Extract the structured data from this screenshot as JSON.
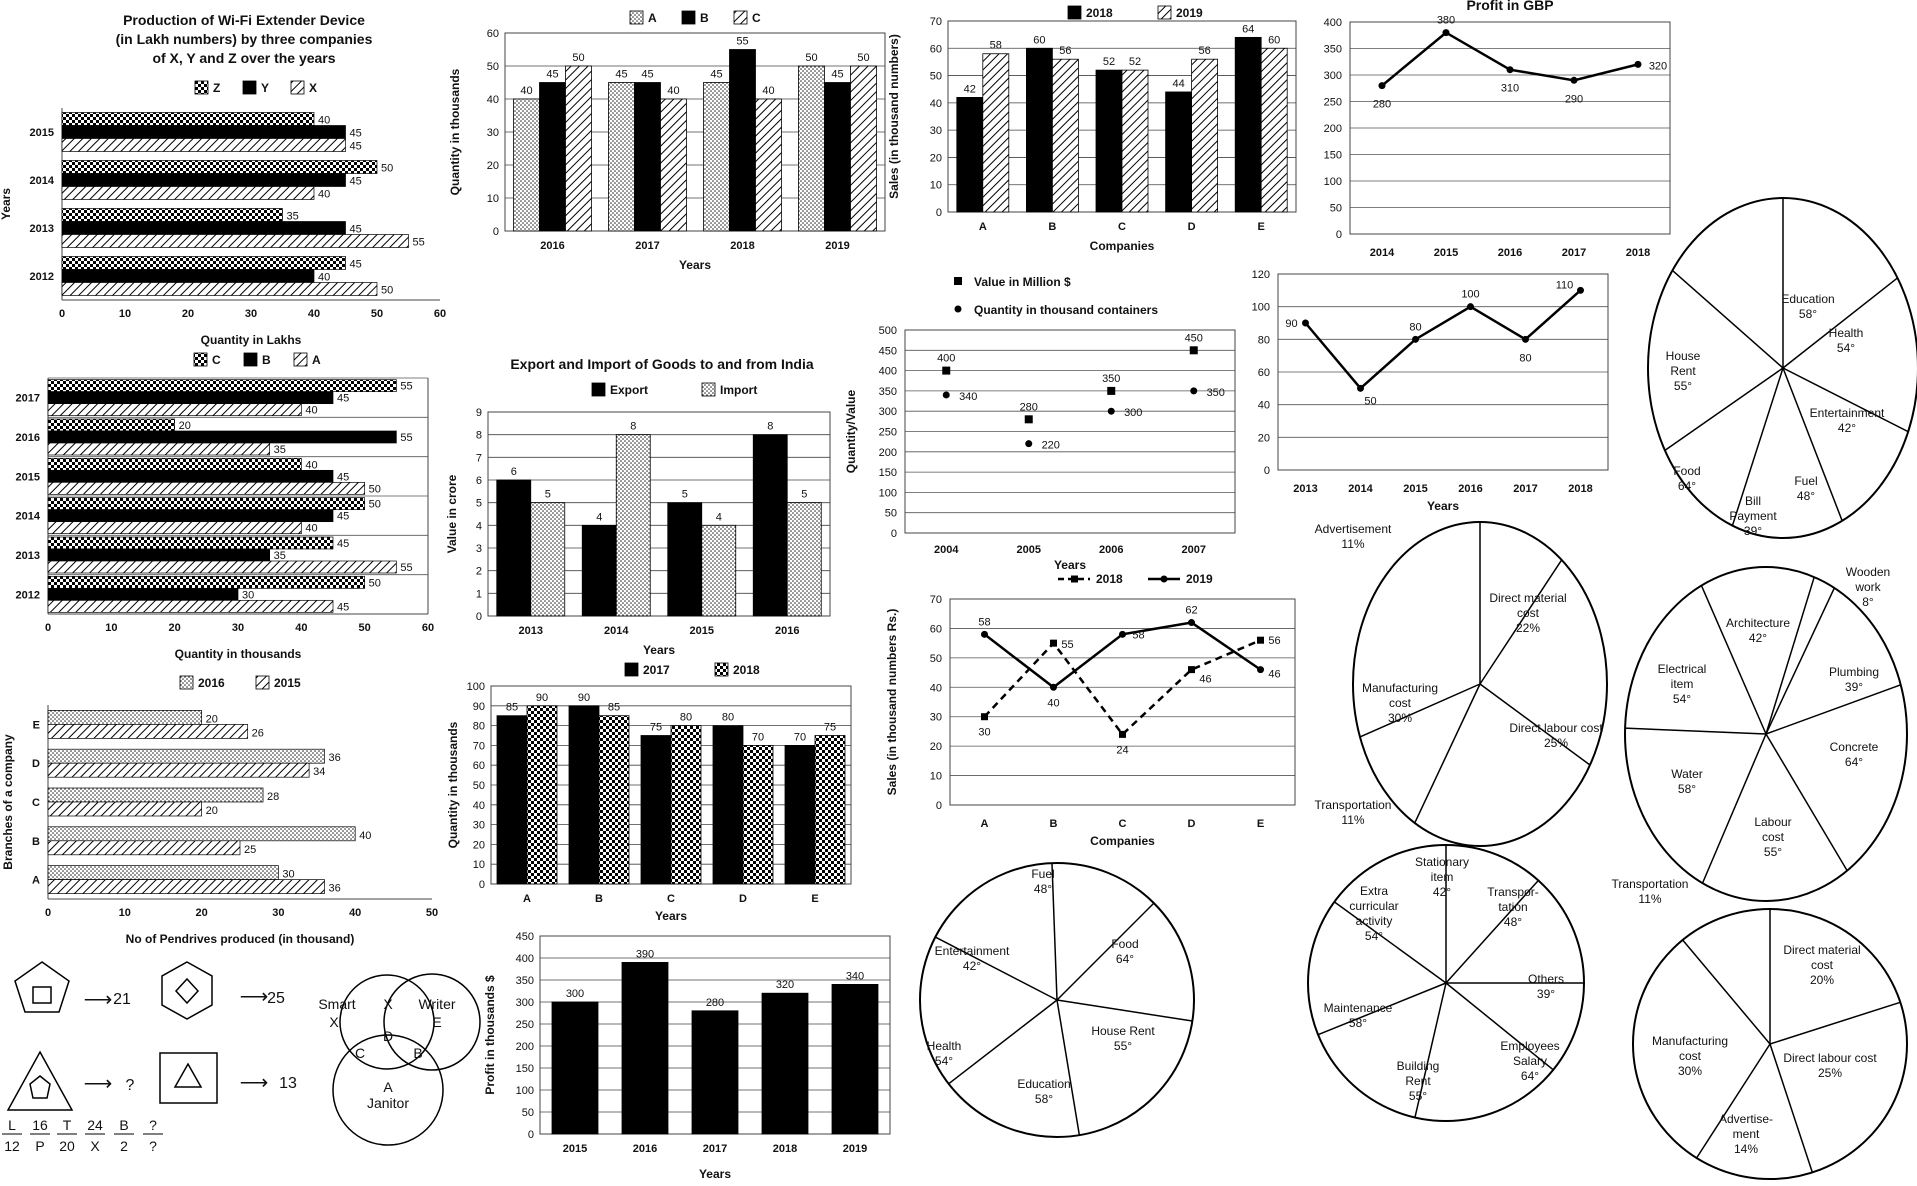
{
  "chart_data": [
    {
      "id": "c1",
      "type": "bar",
      "orientation": "horizontal",
      "title_lines": [
        "Production of Wi-Fi Extender Device",
        "(in Lakh numbers) by three companies",
        "of X, Y and Z over the years"
      ],
      "categories": [
        "2015",
        "2014",
        "2013",
        "2012"
      ],
      "xlabel": "Quantity in Lakhs",
      "ylabel": "Years",
      "xlim": [
        0,
        60
      ],
      "xticks": [
        "0",
        "10",
        "20",
        "30",
        "40",
        "50",
        "60"
      ],
      "series": [
        {
          "name": "Z",
          "pattern": "check",
          "values": [
            40,
            50,
            35,
            45
          ]
        },
        {
          "name": "Y",
          "pattern": "black",
          "values": [
            45,
            45,
            45,
            40
          ]
        },
        {
          "name": "X",
          "pattern": "hatch",
          "values": [
            45,
            40,
            55,
            50
          ]
        }
      ]
    },
    {
      "id": "c2",
      "type": "bar",
      "categories": [
        "2016",
        "2017",
        "2018",
        "2019"
      ],
      "xlabel": "Years",
      "ylabel": "Quantity in thousands",
      "ylim": [
        0,
        60
      ],
      "yticks": [
        "0",
        "10",
        "20",
        "30",
        "40",
        "50",
        "60"
      ],
      "series": [
        {
          "name": "A",
          "pattern": "dots",
          "values": [
            40,
            45,
            45,
            50
          ]
        },
        {
          "name": "B",
          "pattern": "black",
          "values": [
            45,
            45,
            55,
            45
          ]
        },
        {
          "name": "C",
          "pattern": "hatch",
          "values": [
            50,
            40,
            40,
            50
          ]
        }
      ]
    },
    {
      "id": "c3",
      "type": "bar",
      "categories": [
        "A",
        "B",
        "C",
        "D",
        "E"
      ],
      "xlabel": "Companies",
      "ylabel": "Sales (in thousand numbers)",
      "ylim": [
        0,
        70
      ],
      "yticks": [
        "0",
        "10",
        "20",
        "30",
        "40",
        "50",
        "60",
        "70"
      ],
      "series": [
        {
          "name": "2018",
          "pattern": "black",
          "values": [
            42,
            60,
            52,
            44,
            64
          ]
        },
        {
          "name": "2019",
          "pattern": "hatch",
          "values": [
            58,
            56,
            52,
            56,
            60
          ]
        }
      ]
    },
    {
      "id": "c4",
      "type": "line",
      "title": "Profit in GBP",
      "x": [
        "2014",
        "2015",
        "2016",
        "2017",
        "2018"
      ],
      "values": [
        280,
        380,
        310,
        290,
        320
      ],
      "ylim": [
        0,
        400
      ],
      "yticks": [
        "0",
        "50",
        "100",
        "150",
        "200",
        "250",
        "300",
        "350",
        "400"
      ]
    },
    {
      "id": "c5",
      "type": "bar",
      "orientation": "horizontal",
      "categories": [
        "2017",
        "2016",
        "2015",
        "2014",
        "2013",
        "2012"
      ],
      "xlabel": "Quantity in thousands",
      "xlim": [
        0,
        60
      ],
      "xticks": [
        "0",
        "10",
        "20",
        "30",
        "40",
        "50",
        "60"
      ],
      "series": [
        {
          "name": "C",
          "pattern": "check",
          "values": [
            55,
            20,
            40,
            50,
            45,
            50
          ]
        },
        {
          "name": "B",
          "pattern": "black",
          "values": [
            45,
            55,
            45,
            45,
            35,
            30
          ]
        },
        {
          "name": "A",
          "pattern": "hatch",
          "values": [
            40,
            35,
            50,
            40,
            55,
            45
          ]
        }
      ]
    },
    {
      "id": "c6",
      "type": "bar",
      "title": "Export and Import of Goods to and from India",
      "categories": [
        "2013",
        "2014",
        "2015",
        "2016"
      ],
      "xlabel": "Years",
      "ylabel": "Value in crore",
      "ylim": [
        0,
        9
      ],
      "yticks": [
        "0",
        "1",
        "2",
        "3",
        "4",
        "5",
        "6",
        "7",
        "8",
        "9"
      ],
      "series": [
        {
          "name": "Export",
          "pattern": "black",
          "values": [
            6,
            4,
            5,
            8
          ]
        },
        {
          "name": "Import",
          "pattern": "dots",
          "values": [
            5,
            8,
            4,
            5
          ]
        }
      ]
    },
    {
      "id": "c7",
      "type": "scatter",
      "x": [
        "2004",
        "2005",
        "2006",
        "2007"
      ],
      "xlabel": "Years",
      "ylabel": "Quantity/Value",
      "ylim": [
        0,
        500
      ],
      "yticks": [
        "0",
        "50",
        "100",
        "150",
        "200",
        "250",
        "300",
        "350",
        "400",
        "450",
        "500"
      ],
      "series": [
        {
          "name": "Value in Million $",
          "marker": "square",
          "values": [
            400,
            280,
            350,
            450
          ]
        },
        {
          "name": "Quantity in thousand containers",
          "marker": "circle",
          "values": [
            340,
            220,
            300,
            350
          ]
        }
      ]
    },
    {
      "id": "c8",
      "type": "line",
      "x": [
        "2013",
        "2014",
        "2015",
        "2016",
        "2017",
        "2018"
      ],
      "xlabel": "Years",
      "values": [
        90,
        50,
        80,
        100,
        80,
        110
      ],
      "ylim": [
        0,
        120
      ],
      "yticks": [
        "0",
        "20",
        "40",
        "60",
        "80",
        "100",
        "120"
      ]
    },
    {
      "id": "c9",
      "type": "pie",
      "unit": "deg",
      "labels": [
        "Education",
        "Health",
        "Entertainment",
        "Fuel",
        "Bill Payment",
        "Food",
        "House Rent"
      ],
      "values": [
        58,
        54,
        42,
        48,
        39,
        64,
        55
      ],
      "display": [
        "58°",
        "54°",
        "42°",
        "48°",
        "39°",
        "64°",
        "55°"
      ]
    },
    {
      "id": "c10",
      "type": "bar",
      "orientation": "horizontal",
      "categories": [
        "E",
        "D",
        "C",
        "B",
        "A"
      ],
      "xlabel": "No of Pendrives produced (in thousand)",
      "ylabel": "Branches of a company",
      "xlim": [
        0,
        50
      ],
      "xticks": [
        "0",
        "10",
        "20",
        "30",
        "40",
        "50"
      ],
      "series": [
        {
          "name": "2016",
          "pattern": "dots",
          "values": [
            20,
            36,
            28,
            40,
            30
          ]
        },
        {
          "name": "2015",
          "pattern": "hatch",
          "values": [
            26,
            34,
            20,
            25,
            36
          ]
        }
      ]
    },
    {
      "id": "c11",
      "type": "bar",
      "categories": [
        "A",
        "B",
        "C",
        "D",
        "E"
      ],
      "xlabel": "Years",
      "ylabel": "Quantity in thousands",
      "ylim": [
        0,
        100
      ],
      "yticks": [
        "0",
        "10",
        "20",
        "30",
        "40",
        "50",
        "60",
        "70",
        "80",
        "90",
        "100"
      ],
      "series": [
        {
          "name": "2017",
          "pattern": "black",
          "values": [
            85,
            90,
            75,
            80,
            70
          ]
        },
        {
          "name": "2018",
          "pattern": "check",
          "values": [
            90,
            85,
            80,
            70,
            75
          ]
        }
      ]
    },
    {
      "id": "c12",
      "type": "line",
      "x": [
        "A",
        "B",
        "C",
        "D",
        "E"
      ],
      "xlabel": "Companies",
      "ylabel": "Sales (in thousand numbers Rs.)",
      "ylim": [
        0,
        70
      ],
      "yticks": [
        "0",
        "10",
        "20",
        "30",
        "40",
        "50",
        "60",
        "70"
      ],
      "series": [
        {
          "name": "2018",
          "style": "dashed",
          "values": [
            30,
            55,
            24,
            46,
            56
          ]
        },
        {
          "name": "2019",
          "style": "solid",
          "values": [
            58,
            40,
            58,
            62,
            46
          ]
        }
      ]
    },
    {
      "id": "c13",
      "type": "pie",
      "unit": "percent",
      "labels": [
        "Advertisement",
        "Direct material cost",
        "Direct labour cost",
        "Transportation",
        "Manufacturing cost"
      ],
      "values": [
        11,
        22,
        25,
        11,
        30
      ],
      "display": [
        "11%",
        "22%",
        "25%",
        "11%",
        "30%"
      ]
    },
    {
      "id": "c14",
      "type": "pie",
      "unit": "deg",
      "labels": [
        "Wooden work",
        "Plumbing",
        "Concrete",
        "Labour cost",
        "Water",
        "Electrical item",
        "Architecture"
      ],
      "values": [
        8,
        39,
        64,
        55,
        58,
        54,
        42
      ],
      "display": [
        "8°",
        "39°",
        "64°",
        "55°",
        "58°",
        "54°",
        "42°"
      ]
    },
    {
      "id": "c15",
      "type": "bar",
      "categories": [
        "2015",
        "2016",
        "2017",
        "2018",
        "2019"
      ],
      "xlabel": "Years",
      "ylabel": "Profit in thousands $",
      "ylim": [
        0,
        450
      ],
      "yticks": [
        "0",
        "50",
        "100",
        "150",
        "200",
        "250",
        "300",
        "350",
        "400",
        "450"
      ],
      "series": [
        {
          "name": "Profit",
          "pattern": "black",
          "values": [
            300,
            390,
            280,
            320,
            340
          ]
        }
      ]
    },
    {
      "id": "c16",
      "type": "pie",
      "unit": "deg",
      "labels": [
        "Fuel",
        "Food",
        "House Rent",
        "Education",
        "Health",
        "Entertainment"
      ],
      "values": [
        48,
        64,
        55,
        58,
        54,
        42
      ],
      "display": [
        "48°",
        "64°",
        "55°",
        "58°",
        "54°",
        "42°"
      ]
    },
    {
      "id": "c17",
      "type": "pie",
      "unit": "deg",
      "labels": [
        "Stationary item",
        "Transportation",
        "Others",
        "Employees Salary",
        "Building Rent",
        "Maintenance",
        "Extra curricular activity"
      ],
      "values": [
        42,
        48,
        39,
        64,
        55,
        58,
        54
      ],
      "display": [
        "42°",
        "48°",
        "39°",
        "64°",
        "55°",
        "58°",
        "54°"
      ]
    },
    {
      "id": "c18",
      "type": "pie",
      "unit": "percent",
      "labels": [
        "Direct material cost",
        "Direct labour cost",
        "Advertisement",
        "Manufacturing cost",
        "Transportation"
      ],
      "values": [
        20,
        25,
        14,
        30,
        11
      ],
      "display": [
        "20%",
        "25%",
        "14%",
        "30%",
        "11%"
      ]
    }
  ],
  "puzzle": {
    "shape_results": [
      "21",
      "25",
      "?",
      "13"
    ],
    "arrow": "⟶",
    "venn": {
      "smart": "Smart",
      "writer": "Writer",
      "janitor": "Janitor",
      "x": "X",
      "e": "E",
      "a": "A",
      "c": "C",
      "d": "D",
      "b": "B"
    },
    "fractions": [
      {
        "top": "L",
        "bottom": "12"
      },
      {
        "top": "16",
        "bottom": "P"
      },
      {
        "top": "T",
        "bottom": "20"
      },
      {
        "top": "24",
        "bottom": "X"
      },
      {
        "top": "B",
        "bottom": "2"
      },
      {
        "top": "?",
        "bottom": "?"
      }
    ]
  }
}
